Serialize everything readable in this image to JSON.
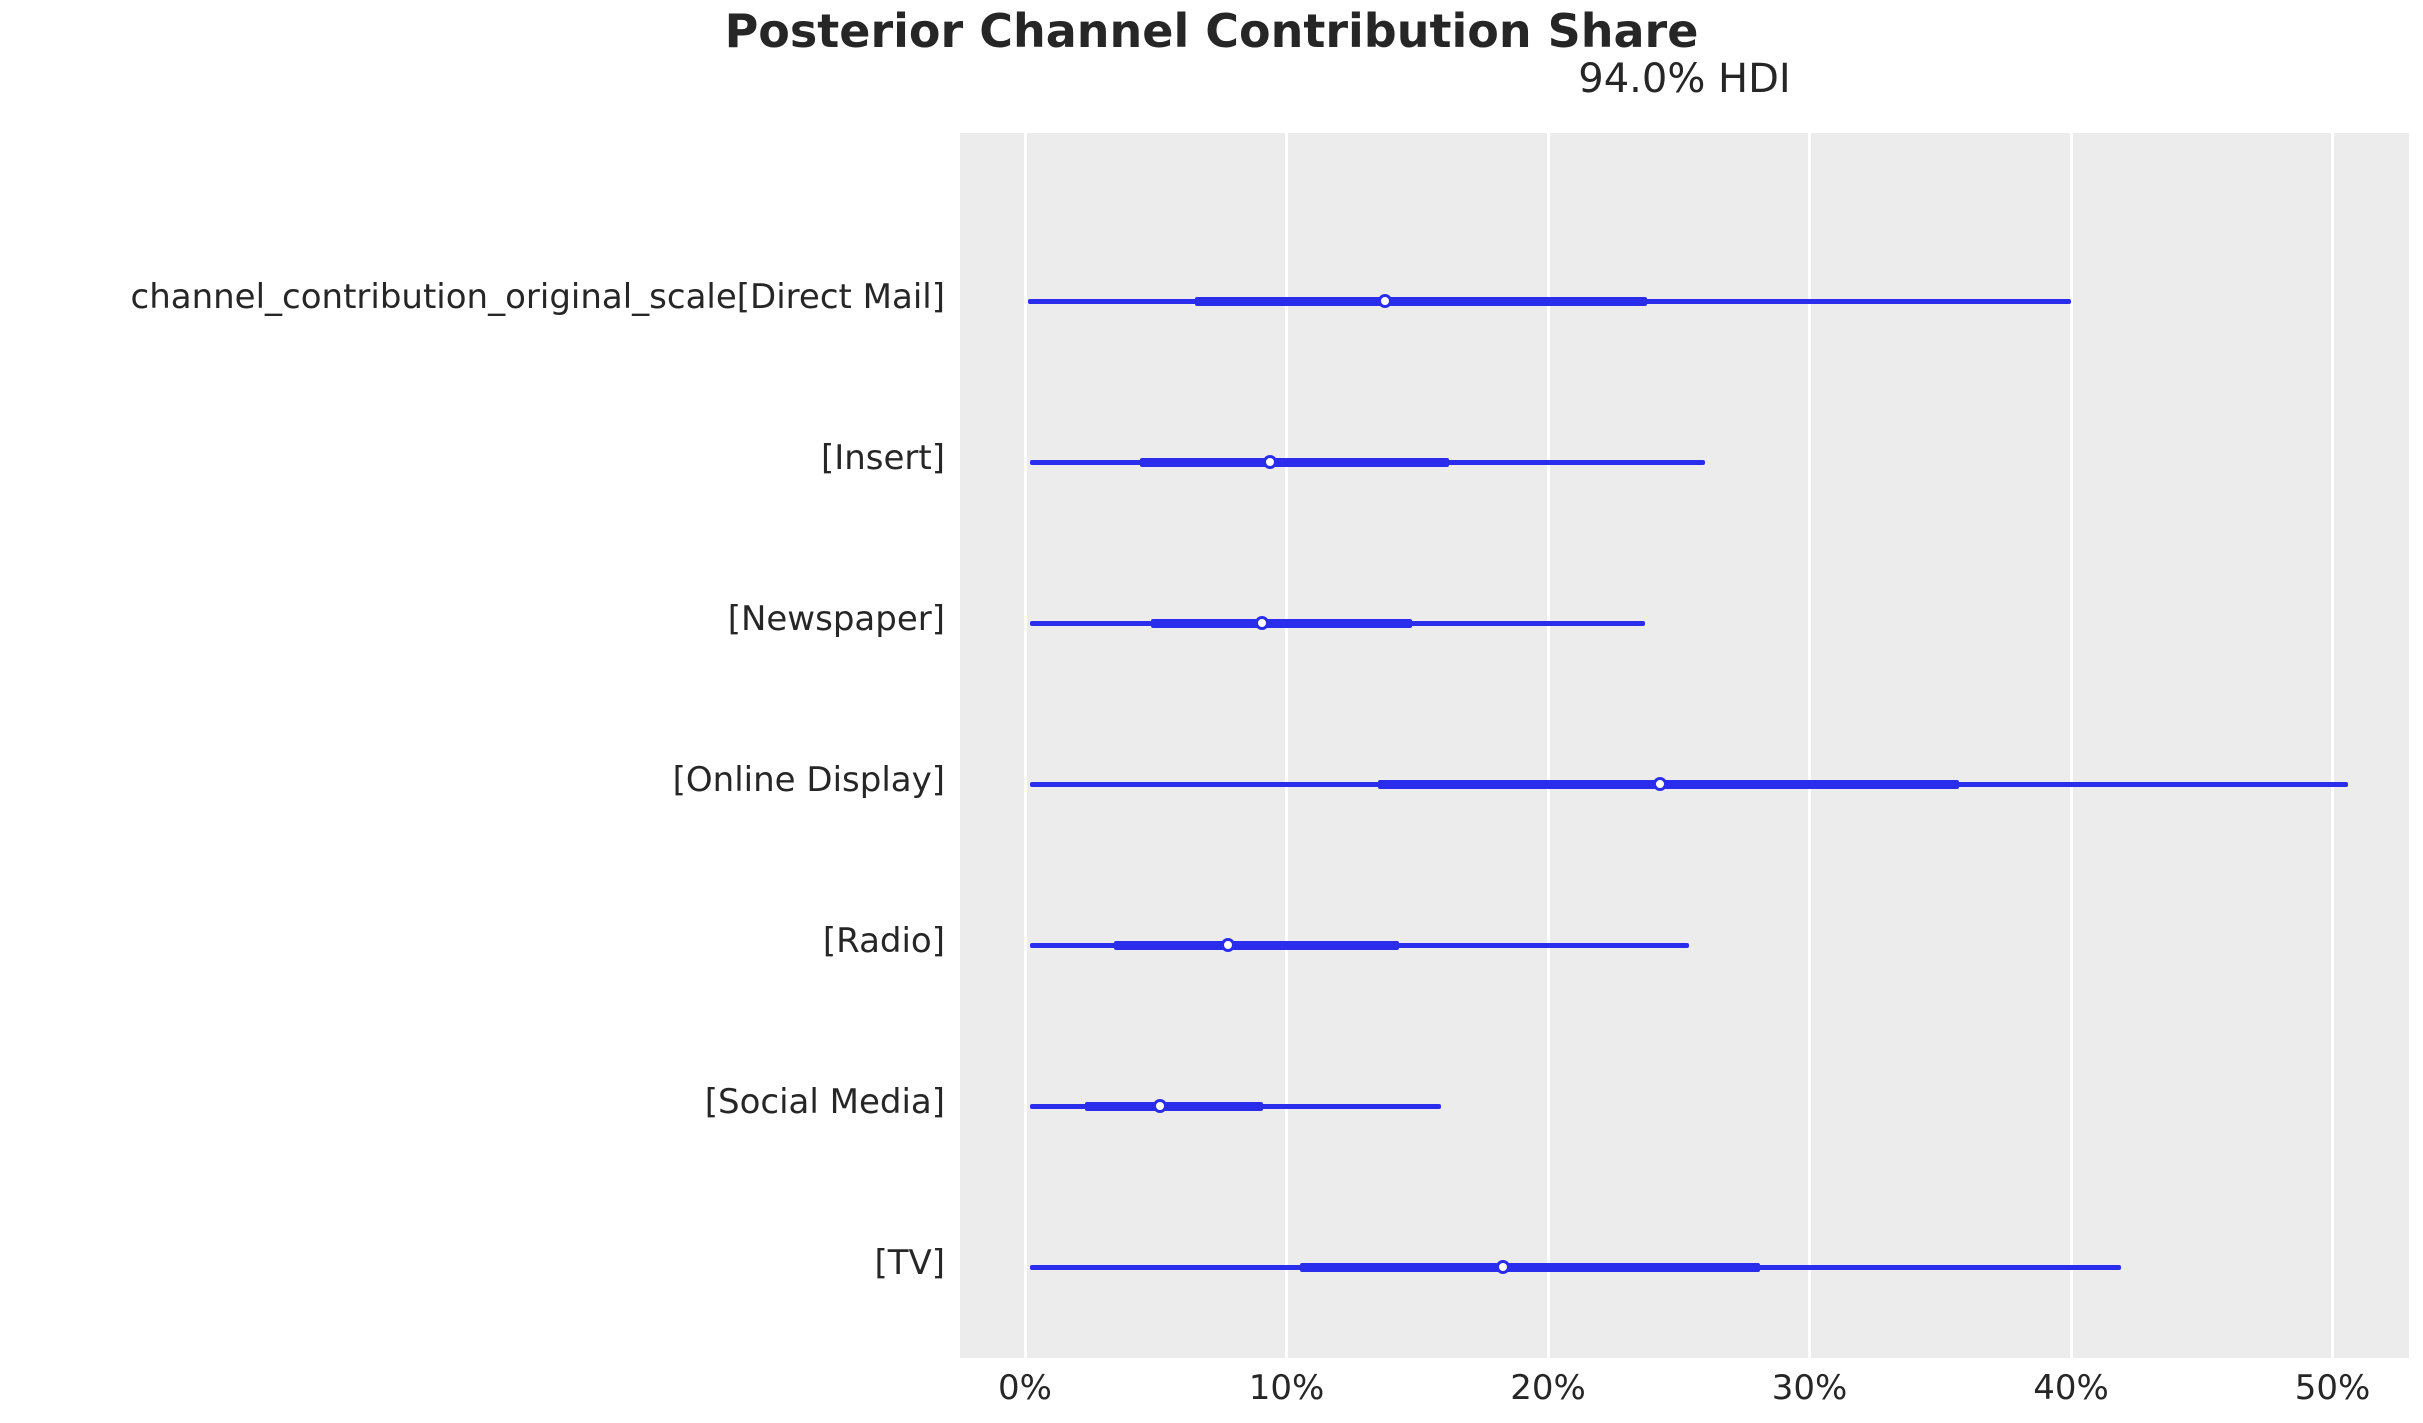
{
  "title": "Posterior Channel Contribution Share",
  "subtitle": "94.0% HDI",
  "colors": {
    "line_blue": "#2a2eec",
    "plot_background": "#ececec",
    "gridline": "#ffffff",
    "text": "#262626"
  },
  "axis": {
    "ticks": [
      0,
      10,
      20,
      30,
      40,
      50
    ],
    "tick_suffix": "%",
    "xmin_pct": -2.5,
    "xmax_pct": 52.9,
    "grid": true
  },
  "chart_data": {
    "type": "forest",
    "title": "Posterior Channel Contribution Share",
    "subtitle": "94.0% HDI",
    "interval_label": "94.0% HDI",
    "unit": "percent",
    "xlabel_ticks": [
      "0%",
      "10%",
      "20%",
      "30%",
      "40%",
      "50%"
    ],
    "rows": [
      {
        "label": "channel_contribution_original_scale[Direct Mail]",
        "hdi_low": 0.1,
        "q25": 6.5,
        "median": 13.8,
        "q75": 23.8,
        "hdi_high": 40.0
      },
      {
        "label": "[Insert]",
        "hdi_low": 0.2,
        "q25": 4.4,
        "median": 9.4,
        "q75": 16.2,
        "hdi_high": 26.0
      },
      {
        "label": "[Newspaper]",
        "hdi_low": 0.2,
        "q25": 4.8,
        "median": 9.1,
        "q75": 14.8,
        "hdi_high": 23.7
      },
      {
        "label": "[Online Display]",
        "hdi_low": 0.2,
        "q25": 13.5,
        "median": 24.3,
        "q75": 35.7,
        "hdi_high": 50.6
      },
      {
        "label": "[Radio]",
        "hdi_low": 0.2,
        "q25": 3.4,
        "median": 7.8,
        "q75": 14.3,
        "hdi_high": 25.4
      },
      {
        "label": "[Social Media]",
        "hdi_low": 0.2,
        "q25": 2.3,
        "median": 5.2,
        "q75": 9.1,
        "hdi_high": 15.9
      },
      {
        "label": "[TV]",
        "hdi_low": 0.2,
        "q25": 10.5,
        "median": 18.3,
        "q75": 28.1,
        "hdi_high": 41.9
      }
    ]
  }
}
